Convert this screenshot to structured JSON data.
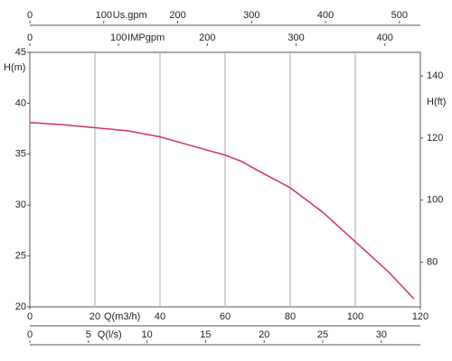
{
  "chart_data": {
    "type": "line",
    "x": [
      0,
      10,
      20,
      30,
      40,
      50,
      60,
      65,
      70,
      80,
      90,
      100,
      110,
      118
    ],
    "values": [
      38.1,
      37.9,
      37.6,
      37.3,
      36.7,
      35.8,
      34.9,
      34.3,
      33.4,
      31.7,
      29.3,
      26.4,
      23.5,
      20.8
    ],
    "color": "#d0306a",
    "xlabel": "Q(m3/h)",
    "xlim": [
      0,
      120
    ],
    "xticks": [
      0,
      20,
      40,
      60,
      80,
      100,
      120
    ],
    "ylabel": "H(m)",
    "ylim": [
      20,
      45
    ],
    "yticks": [
      20,
      25,
      30,
      35,
      40,
      45
    ],
    "y2label": "H(ft)",
    "y2lim": [
      65.6,
      147.6
    ],
    "y2ticks": [
      80,
      100,
      120,
      140
    ],
    "top_axes": [
      {
        "label": "Us.gpm",
        "lim": [
          0,
          528.3
        ],
        "ticks": [
          0,
          100,
          200,
          300,
          400,
          500
        ]
      },
      {
        "label": "IMPgpm",
        "lim": [
          0,
          440
        ],
        "ticks": [
          0,
          100,
          200,
          300,
          400
        ]
      }
    ],
    "bottom_axes": [
      {
        "label": "Q(l/s)",
        "lim": [
          0,
          33.33
        ],
        "ticks": [
          0,
          5,
          10,
          15,
          20,
          25,
          30
        ]
      }
    ],
    "grid": "x"
  }
}
